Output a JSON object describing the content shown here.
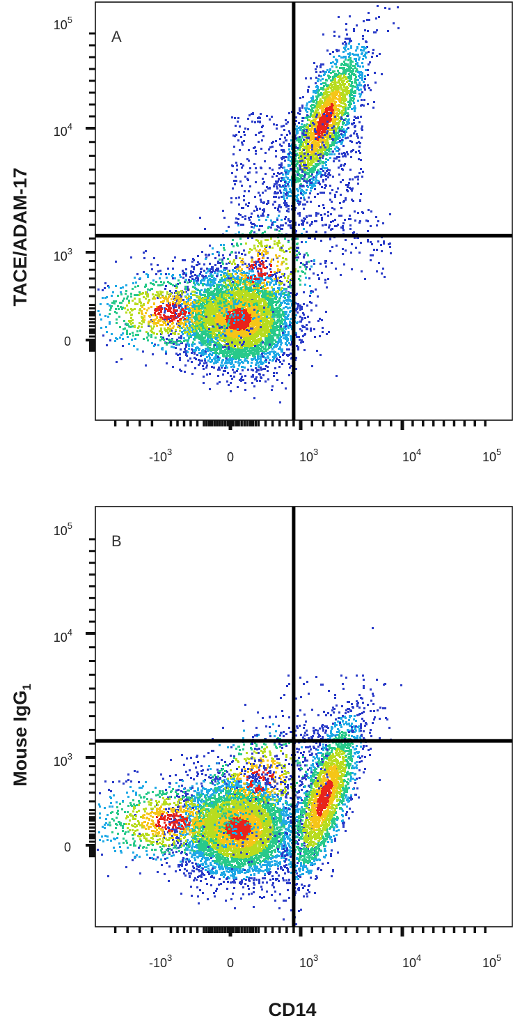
{
  "chart_data": [
    {
      "type": "scatter",
      "panel_label": "A",
      "xlabel": "",
      "ylabel": "TACE/ADAM-17",
      "x_scale": "biexponential",
      "y_scale": "biexponential",
      "x_ticks": [
        {
          "value": -1000,
          "base": "-10",
          "exp": "3"
        },
        {
          "value": 0,
          "base": "0",
          "exp": ""
        },
        {
          "value": 1000,
          "base": "10",
          "exp": "3"
        },
        {
          "value": 10000,
          "base": "10",
          "exp": "4"
        },
        {
          "value": 100000,
          "base": "10",
          "exp": "5"
        }
      ],
      "y_ticks": [
        {
          "value": 0,
          "base": "0",
          "exp": ""
        },
        {
          "value": 1000,
          "base": "10",
          "exp": "3"
        },
        {
          "value": 10000,
          "base": "10",
          "exp": "4"
        },
        {
          "value": 100000,
          "base": "10",
          "exp": "5"
        }
      ],
      "quadrant_gate": {
        "x": 900,
        "y": 2200
      },
      "populations": [
        {
          "name": "",
          "center": [
            100,
            250
          ],
          "spread": "large",
          "density": "high"
        },
        {
          "name": "",
          "center": [
            3000,
            16000
          ],
          "spread": "medium",
          "density": "medium"
        }
      ],
      "grid": false
    },
    {
      "type": "scatter",
      "panel_label": "B",
      "xlabel": "CD14",
      "ylabel": "Mouse IgG",
      "ylabel_subscript": "1",
      "x_scale": "biexponential",
      "y_scale": "biexponential",
      "x_ticks": [
        {
          "value": -1000,
          "base": "-10",
          "exp": "3"
        },
        {
          "value": 0,
          "base": "0",
          "exp": ""
        },
        {
          "value": 1000,
          "base": "10",
          "exp": "3"
        },
        {
          "value": 10000,
          "base": "10",
          "exp": "4"
        },
        {
          "value": 100000,
          "base": "10",
          "exp": "5"
        }
      ],
      "y_ticks": [
        {
          "value": 0,
          "base": "0",
          "exp": ""
        },
        {
          "value": 1000,
          "base": "10",
          "exp": "3"
        },
        {
          "value": 10000,
          "base": "10",
          "exp": "4"
        },
        {
          "value": 100000,
          "base": "10",
          "exp": "5"
        }
      ],
      "quadrant_gate": {
        "x": 900,
        "y": 2200
      },
      "populations": [
        {
          "name": "",
          "center": [
            100,
            200
          ],
          "spread": "large",
          "density": "high"
        },
        {
          "name": "",
          "center": [
            3000,
            550
          ],
          "spread": "medium",
          "density": "medium"
        }
      ],
      "grid": false
    }
  ],
  "colors": {
    "density_low": "#2b3cc9",
    "density_mid_low": "#1fa9e6",
    "density_mid": "#28c98a",
    "density_mid_high": "#b8dc1f",
    "density_high": "#f5c518",
    "density_peak": "#e8231b",
    "gate_line": "#000000",
    "axis": "#111111"
  }
}
